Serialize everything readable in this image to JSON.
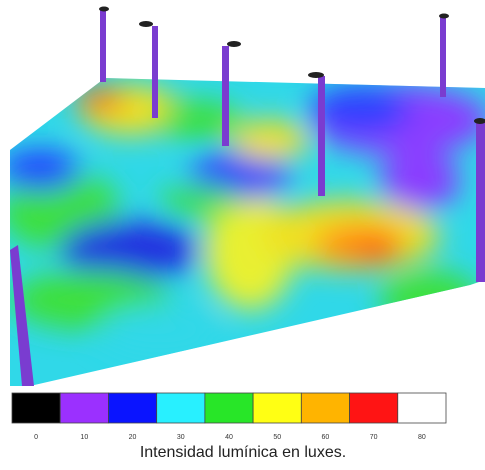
{
  "legend": {
    "ticks": [
      0,
      10,
      20,
      30,
      40,
      50,
      60,
      70,
      80
    ],
    "colors": [
      "#000000",
      "#9b30ff",
      "#0a14ff",
      "#28f0ff",
      "#28e628",
      "#ffff14",
      "#ffb400",
      "#ff1414",
      "#ffffff"
    ]
  },
  "caption": "Intensidad lumínica en luxes."
}
